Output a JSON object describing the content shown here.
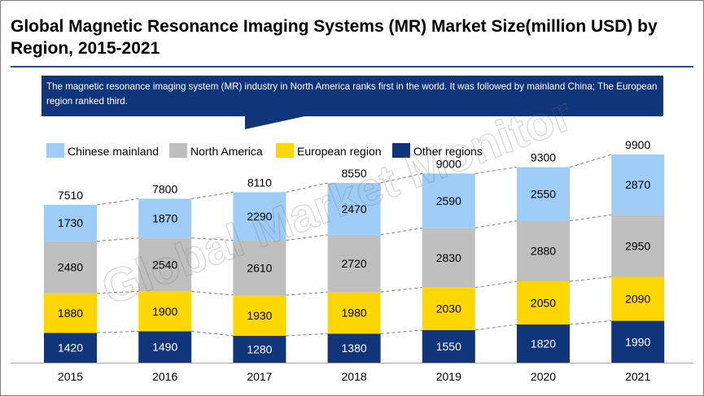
{
  "title": "Global Magnetic Resonance Imaging Systems (MR) Market Size(million USD) by Region, 2015-2021",
  "callout": "The magnetic resonance imaging system (MR) industry in North America ranks first in the world. It was followed by mainland China; The European region ranked third.",
  "watermark": "Global Market Monitor",
  "chart_data": {
    "type": "bar",
    "stacked": true,
    "categories": [
      "2015",
      "2016",
      "2017",
      "2018",
      "2019",
      "2020",
      "2021"
    ],
    "series": [
      {
        "name": "Other regions",
        "color": "#10357a",
        "values": [
          1420,
          1490,
          1280,
          1380,
          1550,
          1820,
          1990
        ]
      },
      {
        "name": "European region",
        "color": "#ffd700",
        "values": [
          1880,
          1900,
          1930,
          1980,
          2030,
          2050,
          2090
        ]
      },
      {
        "name": "North America",
        "color": "#bfbfbf",
        "values": [
          2480,
          2540,
          2610,
          2720,
          2830,
          2880,
          2950
        ]
      },
      {
        "name": "Chinese mainland",
        "color": "#9dcdf7",
        "values": [
          1730,
          1870,
          2290,
          2470,
          2590,
          2550,
          2870
        ]
      }
    ],
    "totals": [
      "7510",
      "7800",
      "8110",
      "8550",
      "9000",
      "9300",
      "9900"
    ],
    "legend_order": [
      "Chinese mainland",
      "North America",
      "European region",
      "Other regions"
    ],
    "legend_position": "top-left",
    "connector_lines": "dashed",
    "grid": false
  }
}
